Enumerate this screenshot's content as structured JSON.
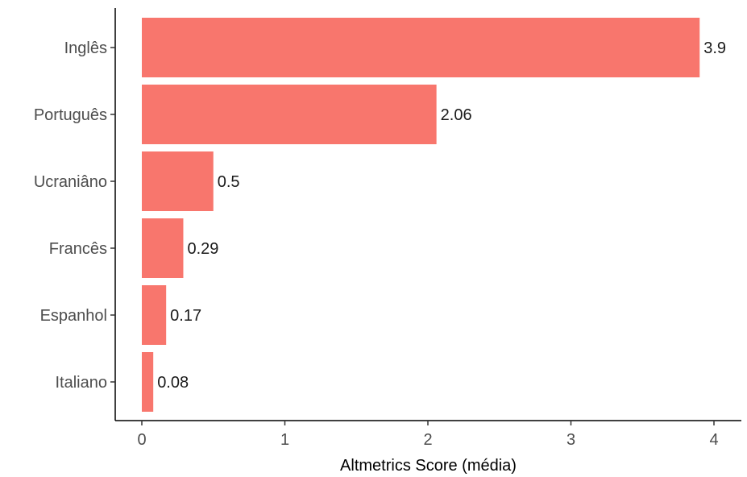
{
  "chart_data": {
    "type": "bar",
    "orientation": "horizontal",
    "categories": [
      "Inglês",
      "Português",
      "Ucraniâno",
      "Francês",
      "Espanhol",
      "Italiano"
    ],
    "values": [
      3.9,
      2.06,
      0.5,
      0.29,
      0.17,
      0.08
    ],
    "value_labels": [
      "3.9",
      "2.06",
      "0.5",
      "0.29",
      "0.17",
      "0.08"
    ],
    "xlabel": "Altmetrics Score (média)",
    "ylabel": "",
    "xlim": [
      0,
      4
    ],
    "x_ticks": [
      "0",
      "1",
      "2",
      "3",
      "4"
    ],
    "grid": false,
    "bar_color": "#F8766D"
  }
}
